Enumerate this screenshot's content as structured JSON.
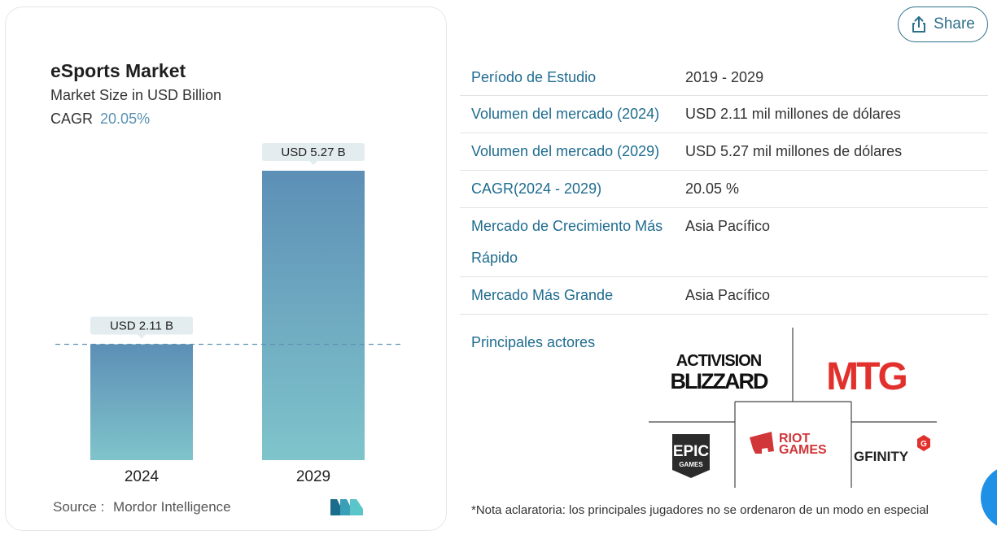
{
  "chart": {
    "title": "eSports Market",
    "subtitle": "Market Size in USD Billion",
    "cagr_label": "CAGR",
    "cagr_value": "20.05%"
  },
  "chart_data": {
    "type": "bar",
    "categories": [
      "2024",
      "2029"
    ],
    "values": [
      2.11,
      5.27
    ],
    "data_labels": [
      "USD 2.11 B",
      "USD 5.27 B"
    ],
    "title": "eSports Market",
    "subtitle": "Market Size in USD Billion",
    "xlabel": "",
    "ylabel": "",
    "ylim": [
      0,
      5.9
    ],
    "grid": false,
    "colors": {
      "bar_top": "#5d8fb6",
      "bar_bottom": "#7fc4cb",
      "ref_line": "#5a93b3"
    }
  },
  "source": {
    "label": "Source :",
    "name": "Mordor Intelligence"
  },
  "share": {
    "label": "Share"
  },
  "table": {
    "rows": [
      {
        "key": "Período de Estudio",
        "value": "2019 - 2029"
      },
      {
        "key": "Volumen del mercado (2024)",
        "value": "USD 2.11 mil millones de dólares"
      },
      {
        "key": "Volumen del mercado (2029)",
        "value": "USD 5.27 mil millones de dólares"
      },
      {
        "key": "CAGR(2024 - 2029)",
        "value": "20.05 %"
      },
      {
        "key": "Mercado de Crecimiento Más Rápido",
        "value": "Asia Pacífico"
      },
      {
        "key": "Mercado Más Grande",
        "value": "Asia Pacífico"
      }
    ]
  },
  "players": {
    "label": "Principales actores",
    "logos": {
      "activision_line1": "ACTIVISION",
      "activision_line2": "BLIZZARD",
      "mtg": "MTG",
      "epic_line1": "EPIC",
      "epic_line2": "GAMES",
      "riot_line1": "RIOT",
      "riot_line2": "GAMES",
      "gfinity": "GFINITY"
    }
  },
  "note": "*Nota aclaratoria: los principales jugadores no se ordenaron de un modo en especial",
  "colors": {
    "accent": "#1f6c8f",
    "share_border": "#2d6f8a",
    "mtg_red": "#e2302c",
    "riot_red": "#d13639"
  }
}
